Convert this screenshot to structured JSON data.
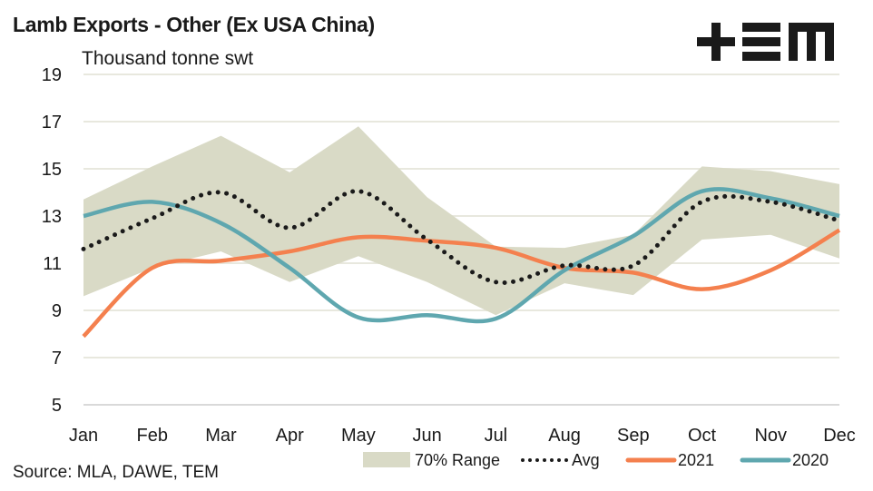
{
  "header": {
    "title": "Lamb Exports - Other (Ex USA China)",
    "unit_label": "Thousand tonne swt",
    "logo": "TEM-logo"
  },
  "footer": {
    "source": "Source: MLA, DAWE, TEM"
  },
  "colors": {
    "range": "#D9DAC6",
    "avg": "#1A1A1A",
    "y2021": "#F4804E",
    "y2020": "#5FA7AF",
    "grid": "#E8E8DE"
  },
  "chart_data": {
    "type": "line",
    "title": "Lamb Exports - Other (Ex USA China)",
    "ylabel": "Thousand tonne swt",
    "xlabel": "",
    "ylim": [
      5,
      19
    ],
    "yticks": [
      5,
      7,
      9,
      11,
      13,
      15,
      17,
      19
    ],
    "grid": true,
    "legend_position": "bottom-right",
    "categories": [
      "Jan",
      "Feb",
      "Mar",
      "Apr",
      "May",
      "Jun",
      "Jul",
      "Aug",
      "Sep",
      "Oct",
      "Nov",
      "Dec"
    ],
    "range": {
      "name": "70% Range",
      "upper": [
        13.7,
        15.1,
        16.4,
        14.85,
        16.8,
        13.8,
        11.7,
        11.65,
        12.2,
        15.1,
        14.9,
        14.35
      ],
      "lower": [
        9.6,
        10.8,
        11.5,
        10.2,
        11.3,
        10.2,
        8.8,
        10.15,
        9.65,
        12.0,
        12.2,
        11.2
      ]
    },
    "series": [
      {
        "name": "Avg",
        "style": "dotted",
        "values": [
          11.6,
          12.9,
          14.0,
          12.5,
          14.05,
          12.0,
          10.2,
          10.9,
          10.9,
          13.6,
          13.6,
          12.8
        ]
      },
      {
        "name": "2021",
        "style": "solid",
        "values": [
          7.9,
          10.8,
          11.1,
          11.5,
          12.1,
          11.95,
          11.65,
          10.8,
          10.6,
          9.9,
          10.7,
          12.4
        ]
      },
      {
        "name": "2020",
        "style": "solid",
        "values": [
          13.0,
          13.6,
          12.7,
          10.8,
          8.7,
          8.8,
          8.65,
          10.7,
          12.15,
          14.05,
          13.75,
          13.0
        ]
      }
    ],
    "legend": [
      "70% Range",
      "Avg",
      "2021",
      "2020"
    ]
  }
}
